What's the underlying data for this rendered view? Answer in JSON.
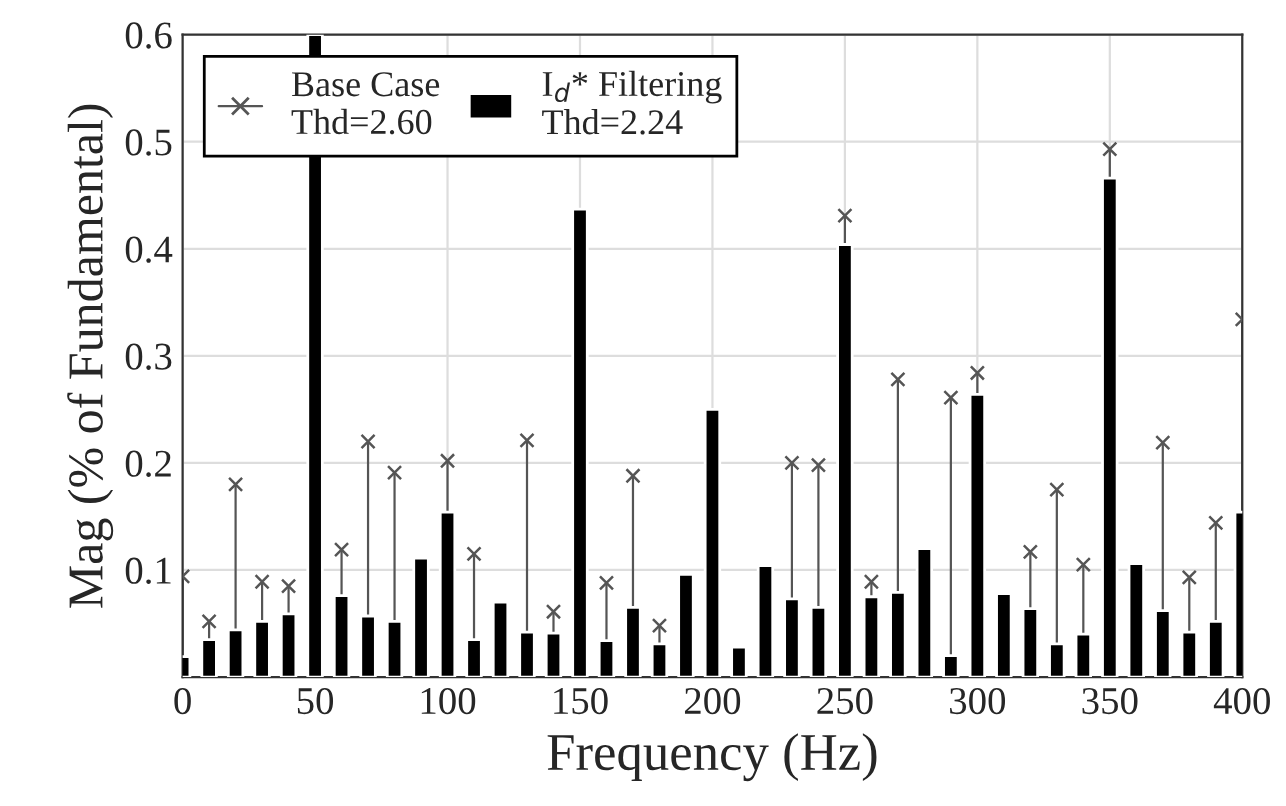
{
  "chart_data": {
    "type": "bar",
    "xlabel": "Frequency (Hz)",
    "ylabel": "Mag (% of Fundamental)",
    "x": [
      0,
      10,
      20,
      30,
      40,
      50,
      60,
      70,
      80,
      90,
      100,
      110,
      120,
      130,
      140,
      150,
      160,
      170,
      180,
      190,
      200,
      210,
      220,
      230,
      240,
      250,
      260,
      270,
      280,
      290,
      300,
      310,
      320,
      330,
      340,
      350,
      360,
      370,
      380,
      390,
      400
    ],
    "series": [
      {
        "name": "Base Case\nThd=2.60",
        "type": "lollipop",
        "color": "#555555",
        "marker": "cross",
        "values": [
          0.094,
          0.052,
          0.18,
          0.089,
          0.085,
          null,
          0.119,
          0.22,
          0.191,
          null,
          0.202,
          0.115,
          null,
          0.221,
          0.061,
          null,
          0.088,
          0.188,
          0.048,
          null,
          null,
          null,
          null,
          0.2,
          0.198,
          0.431,
          0.089,
          0.278,
          null,
          0.261,
          0.284,
          null,
          0.117,
          0.175,
          0.105,
          0.493,
          null,
          0.219,
          0.093,
          0.144,
          0.334
        ]
      },
      {
        "name": "I$_{d}$* Filtering\nThd=2.24",
        "color": "#000000",
        "values": [
          0.019,
          0.035,
          0.044,
          0.052,
          0.059,
          0.6,
          0.076,
          0.057,
          0.052,
          0.111,
          0.154,
          0.035,
          0.07,
          0.042,
          0.041,
          0.437,
          0.034,
          0.065,
          0.031,
          0.096,
          0.25,
          0.028,
          0.104,
          0.073,
          0.065,
          0.404,
          0.075,
          0.079,
          0.12,
          0.02,
          0.264,
          0.078,
          0.064,
          0.031,
          0.04,
          0.466,
          0.106,
          0.062,
          0.042,
          0.052,
          0.154
        ]
      }
    ],
    "xlim": [
      0,
      400
    ],
    "xticks": [
      0,
      50,
      100,
      150,
      200,
      250,
      300,
      350,
      400
    ],
    "ylim": [
      0,
      0.6
    ],
    "yticks": [
      0.1,
      0.2,
      0.3,
      0.4,
      0.5,
      0.6
    ],
    "grid": true,
    "legend": "top left"
  }
}
